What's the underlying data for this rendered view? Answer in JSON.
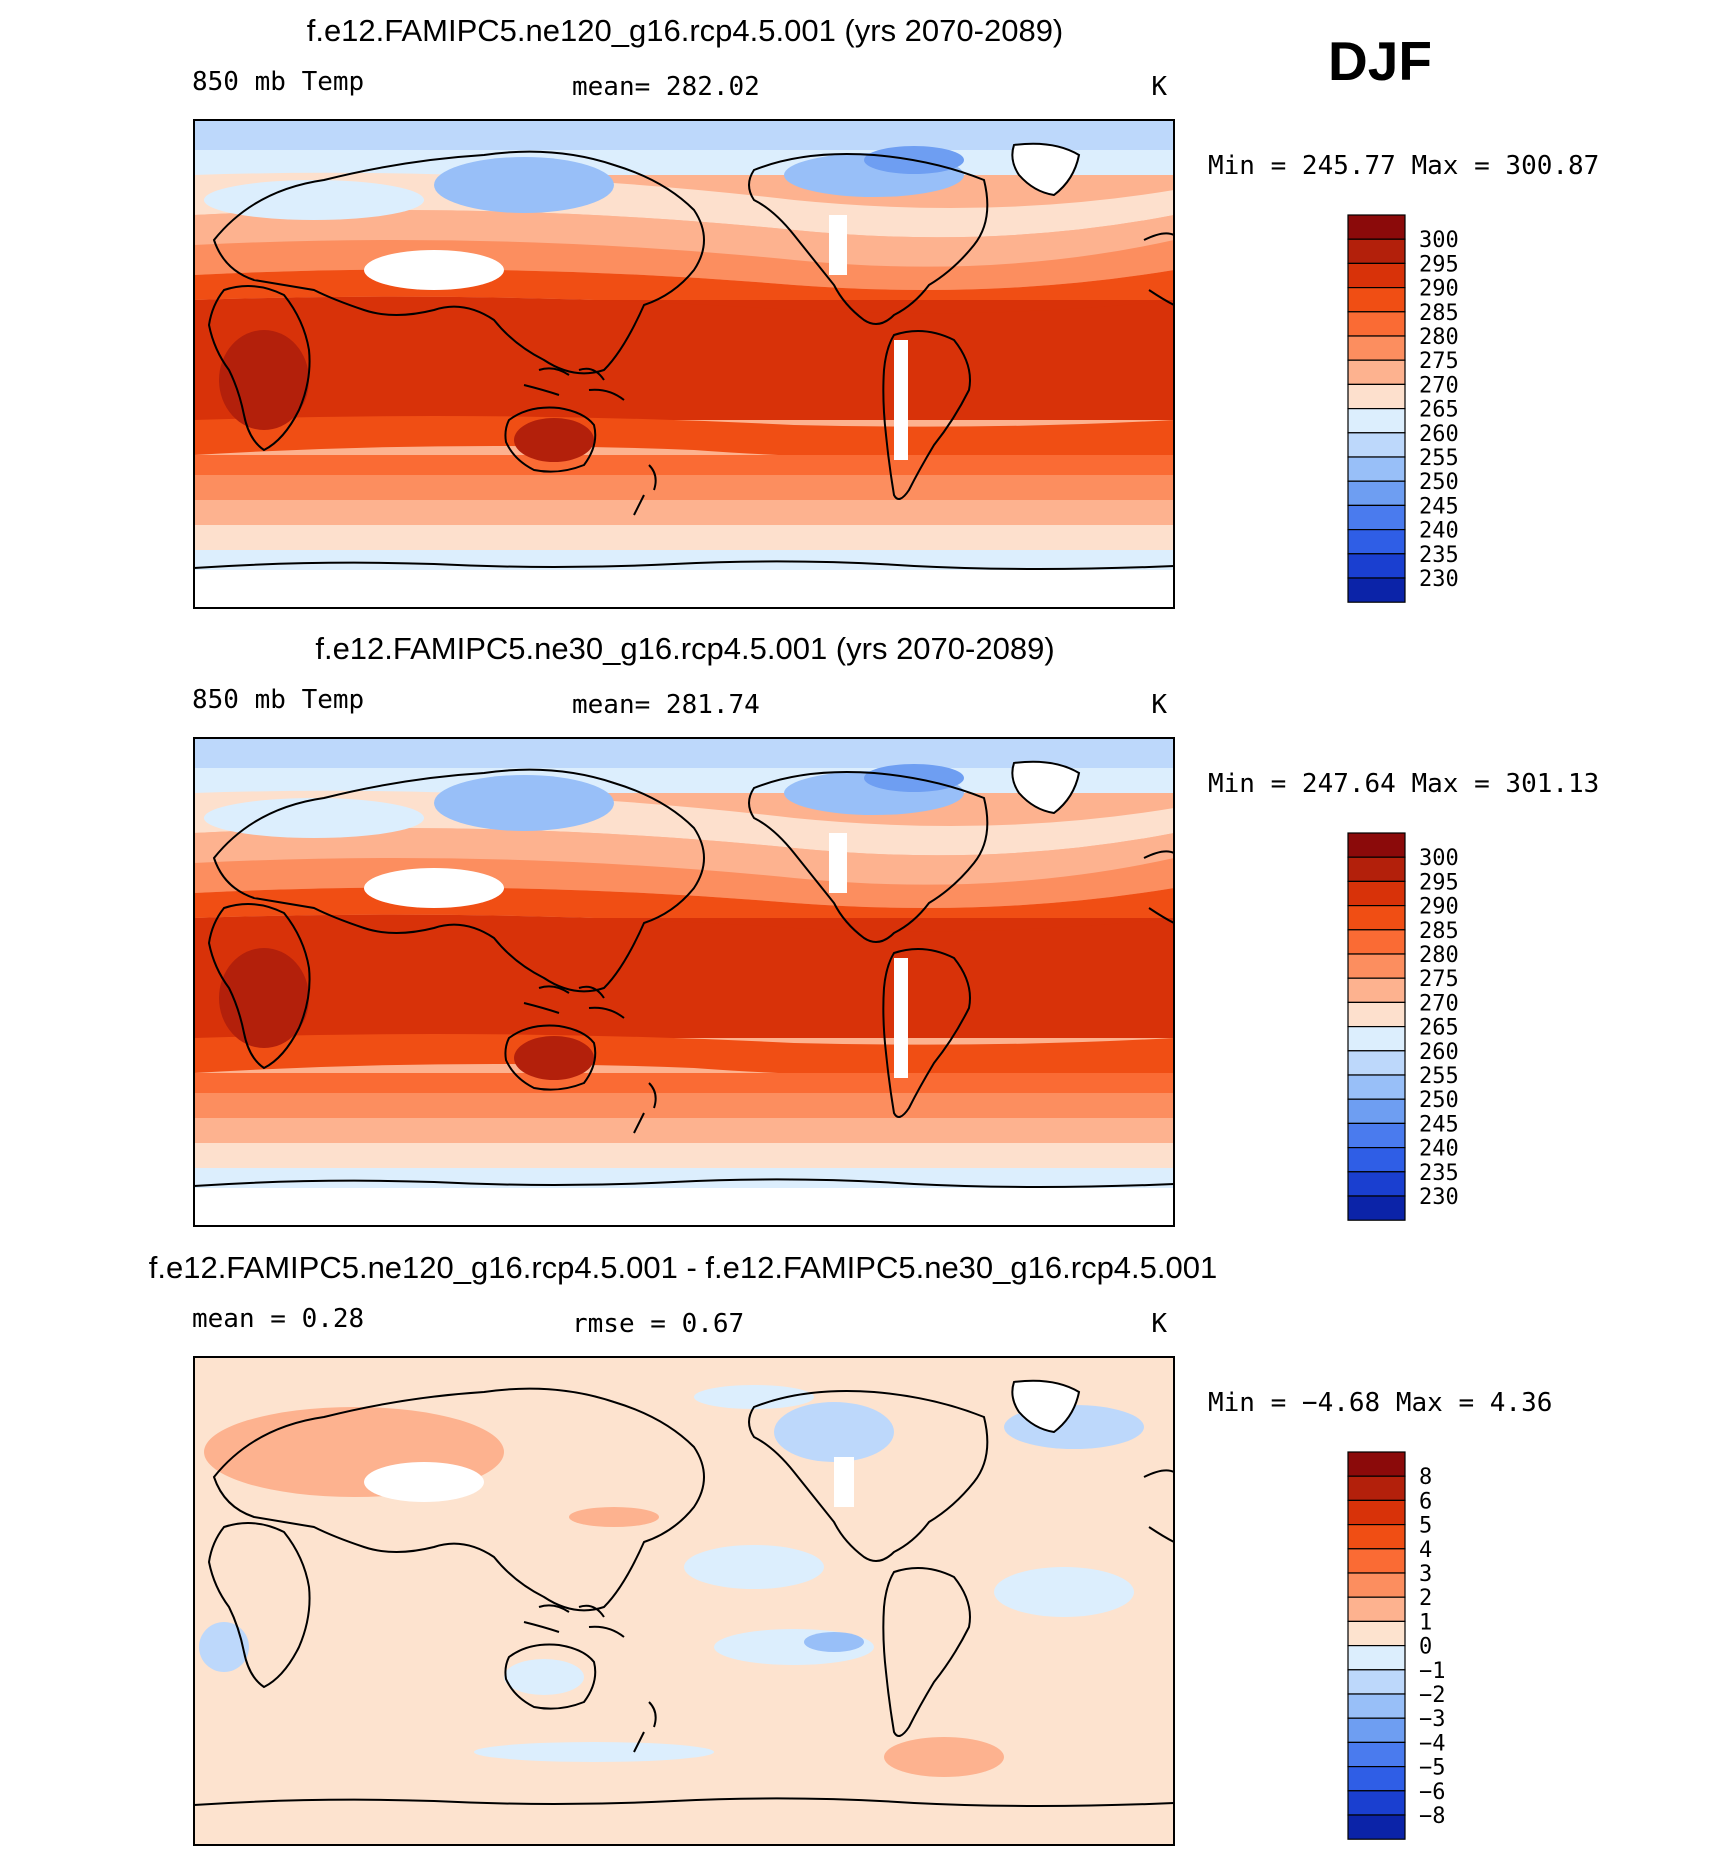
{
  "season": "DJF",
  "panels": [
    {
      "title": "f.e12.FAMIPC5.ne120_g16.rcp4.5.001 (yrs 2070-2089)",
      "left_label": "850 mb Temp",
      "center_label": "mean= 282.02",
      "units": "K",
      "minmax": "Min = 245.77 Max = 300.87",
      "colorbar": {
        "labels": [
          "300",
          "295",
          "290",
          "285",
          "280",
          "275",
          "270",
          "265",
          "260",
          "255",
          "250",
          "245",
          "240",
          "235",
          "230"
        ],
        "colors": [
          "#8b0a0a",
          "#b3200b",
          "#d83209",
          "#f04e14",
          "#fa6b34",
          "#fc8e5f",
          "#fdb28f",
          "#fde0cd",
          "#dceefd",
          "#bdd8fb",
          "#98bff8",
          "#6e9ef2",
          "#4a7bee",
          "#2f5ee6",
          "#1a3fd0",
          "#0b23a8"
        ]
      },
      "chart_data": {
        "type": "heatmap",
        "field": "850 mb Temp",
        "season": "DJF",
        "mean": 282.02,
        "min": 245.77,
        "max": 300.87,
        "units": "K",
        "levels": [
          230,
          235,
          240,
          245,
          250,
          255,
          260,
          265,
          270,
          275,
          280,
          285,
          290,
          295,
          300
        ]
      }
    },
    {
      "title": "f.e12.FAMIPC5.ne30_g16.rcp4.5.001 (yrs 2070-2089)",
      "left_label": "850 mb Temp",
      "center_label": "mean= 281.74",
      "units": "K",
      "minmax": "Min = 247.64 Max = 301.13",
      "colorbar": {
        "labels": [
          "300",
          "295",
          "290",
          "285",
          "280",
          "275",
          "270",
          "265",
          "260",
          "255",
          "250",
          "245",
          "240",
          "235",
          "230"
        ],
        "colors": [
          "#8b0a0a",
          "#b3200b",
          "#d83209",
          "#f04e14",
          "#fa6b34",
          "#fc8e5f",
          "#fdb28f",
          "#fde0cd",
          "#dceefd",
          "#bdd8fb",
          "#98bff8",
          "#6e9ef2",
          "#4a7bee",
          "#2f5ee6",
          "#1a3fd0",
          "#0b23a8"
        ]
      },
      "chart_data": {
        "type": "heatmap",
        "field": "850 mb Temp",
        "season": "DJF",
        "mean": 281.74,
        "min": 247.64,
        "max": 301.13,
        "units": "K",
        "levels": [
          230,
          235,
          240,
          245,
          250,
          255,
          260,
          265,
          270,
          275,
          280,
          285,
          290,
          295,
          300
        ]
      }
    },
    {
      "title": "f.e12.FAMIPC5.ne120_g16.rcp4.5.001 - f.e12.FAMIPC5.ne30_g16.rcp4.5.001",
      "left_label": "mean =    0.28",
      "center_label": "rmse =    0.67",
      "units": "K",
      "minmax": "Min =   −4.68 Max =    4.36",
      "colorbar": {
        "labels": [
          "8",
          "6",
          "5",
          "4",
          "3",
          "2",
          "1",
          "0",
          "−1",
          "−2",
          "−3",
          "−4",
          "−5",
          "−6",
          "−8"
        ],
        "colors": [
          "#8b0a0a",
          "#b3200b",
          "#d83209",
          "#f04e14",
          "#fa6b34",
          "#fc8e5f",
          "#fdb28f",
          "#fde3cf",
          "#dceefd",
          "#bdd8fb",
          "#98bff8",
          "#6e9ef2",
          "#4a7bee",
          "#2f5ee6",
          "#1a3fd0",
          "#0b23a8"
        ]
      },
      "chart_data": {
        "type": "heatmap",
        "field": "difference",
        "season": "DJF",
        "mean": 0.28,
        "rmse": 0.67,
        "min": -4.68,
        "max": 4.36,
        "units": "K",
        "levels": [
          -8,
          -6,
          -5,
          -4,
          -3,
          -2,
          -1,
          0,
          1,
          2,
          3,
          4,
          5,
          6,
          8
        ]
      }
    }
  ]
}
